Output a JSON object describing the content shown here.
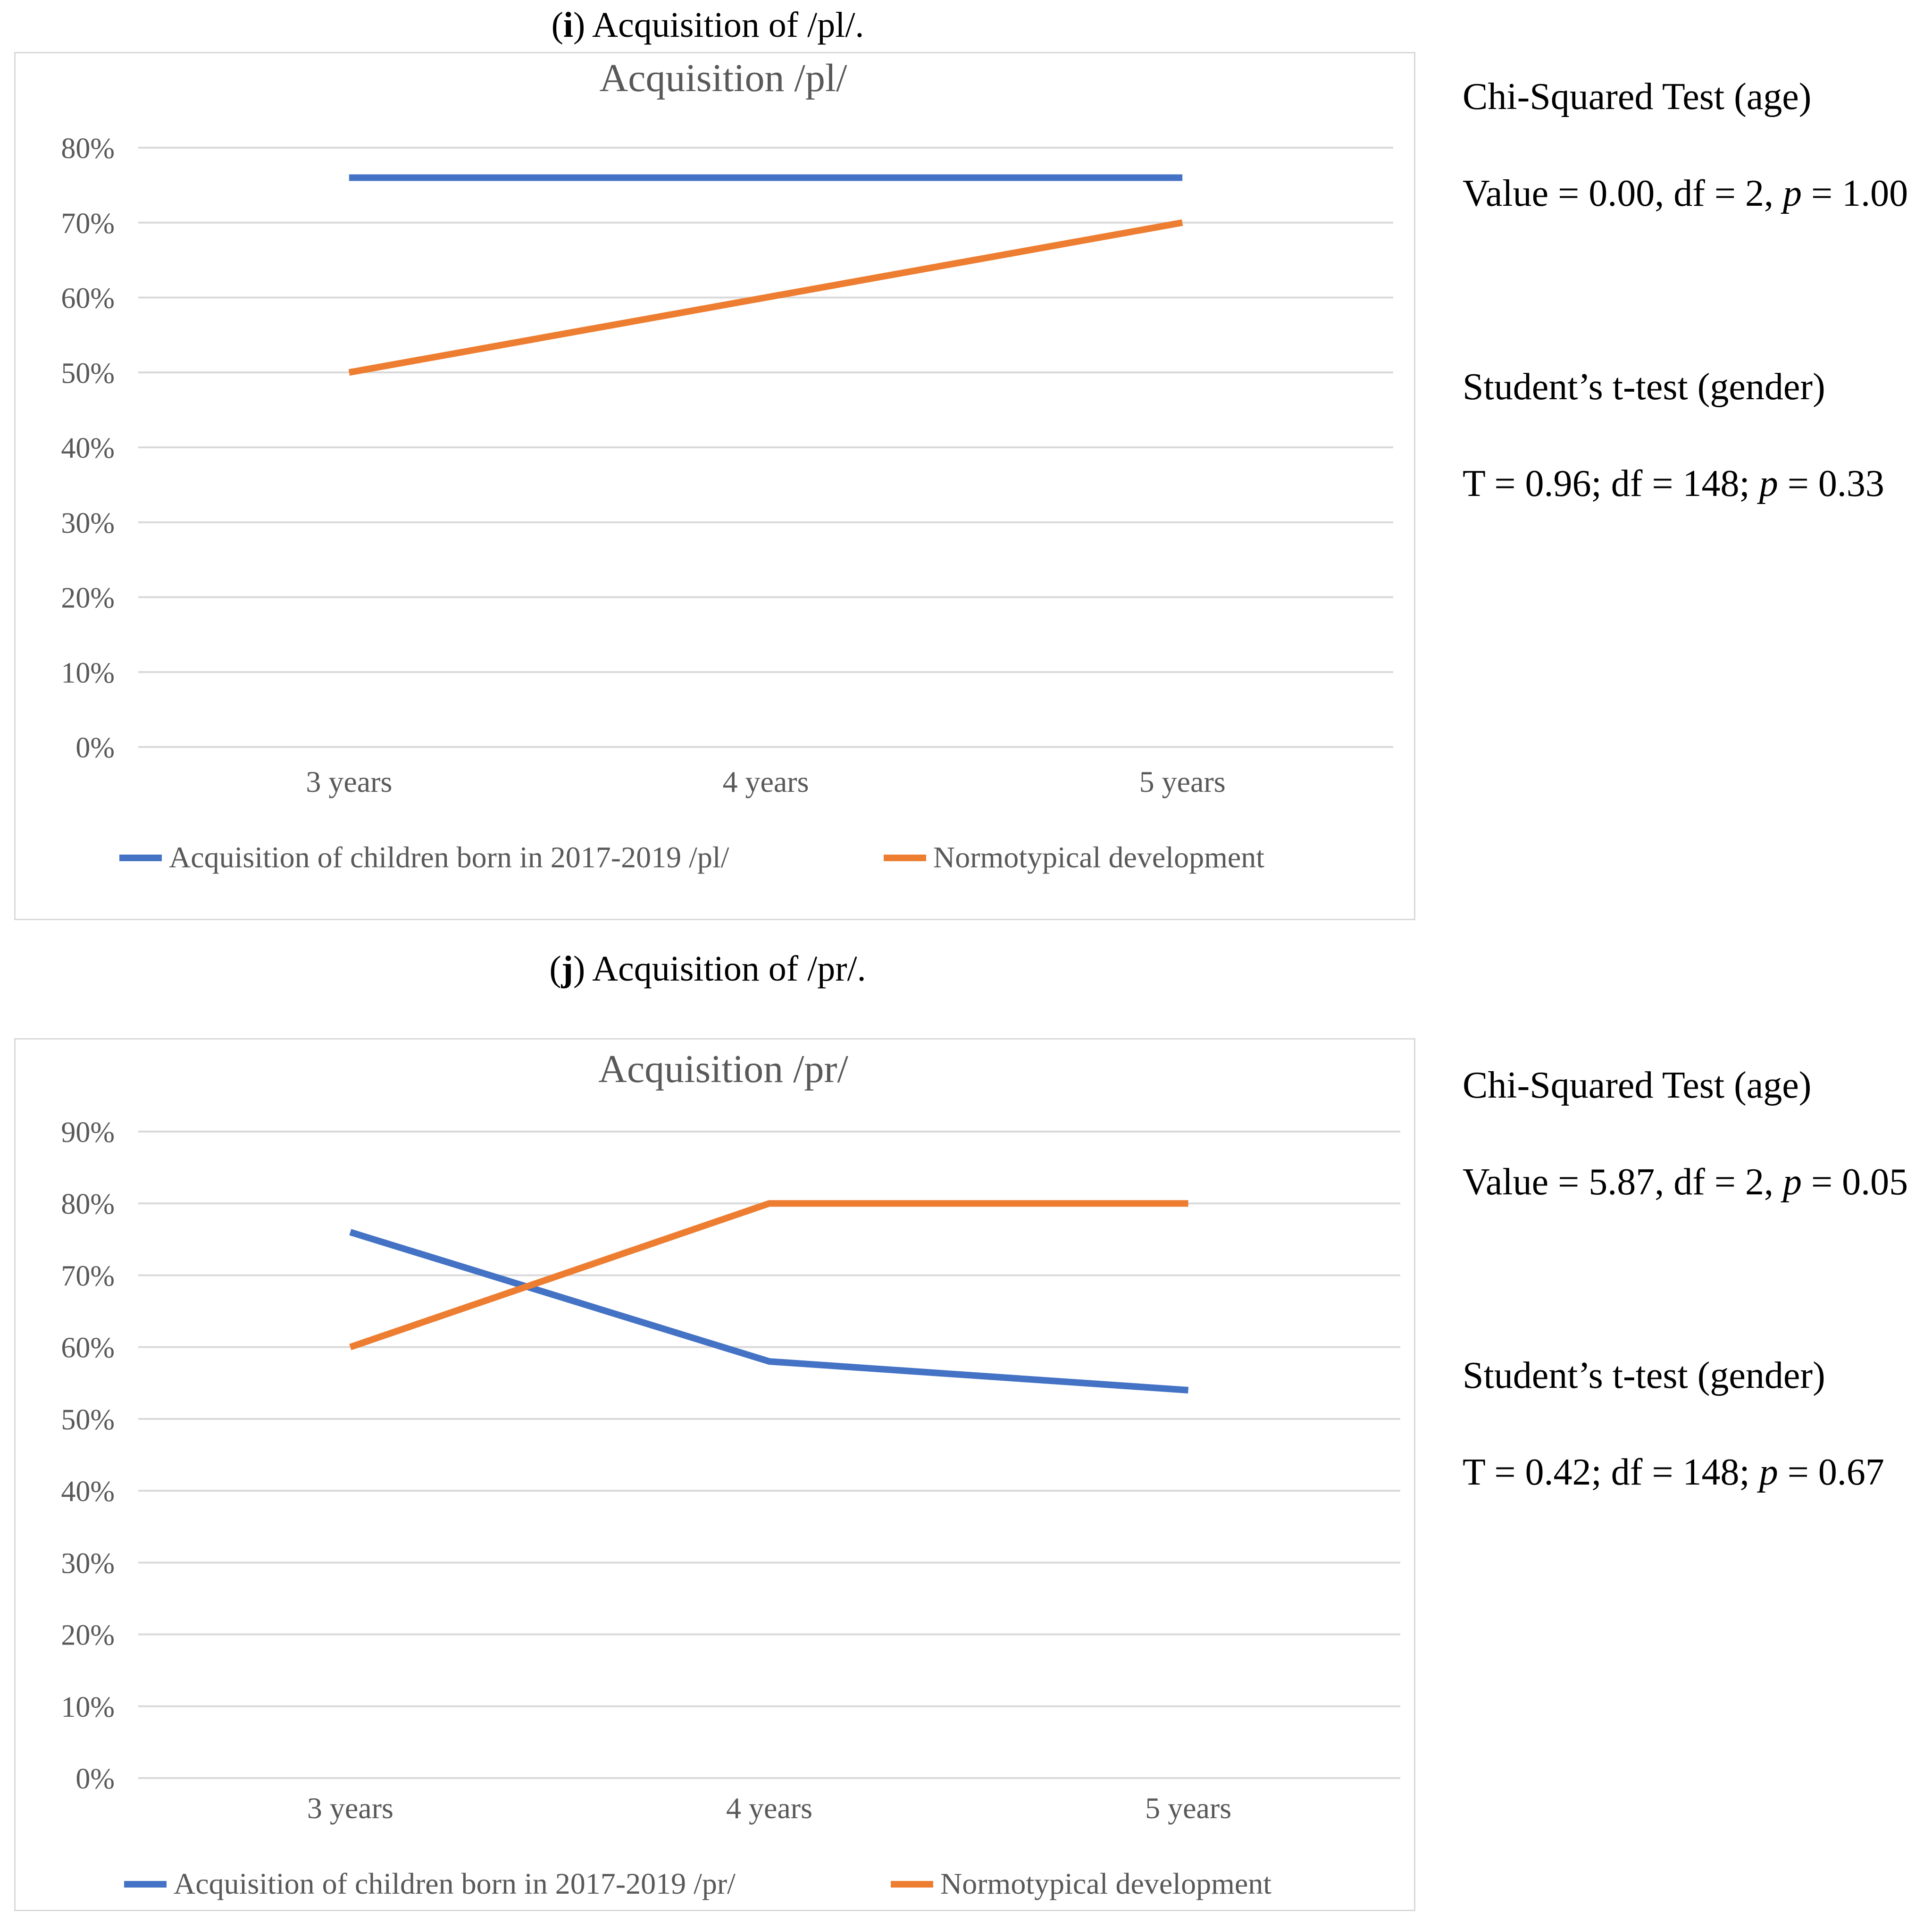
{
  "panels": [
    {
      "caption_letter": "i",
      "caption_text": "Acquisition of /pl/.",
      "stats": {
        "chi_title": "Chi-Squared Test (age)",
        "chi_prefix": "Value = 0.00, df = 2, ",
        "chi_p_label": "p",
        "chi_p_value": " = 1.00",
        "t_title": "Student’s t-test (gender)",
        "t_prefix": "T = 0.96; df = 148; ",
        "t_p_label": "p",
        "t_p_value": " = 0.33"
      }
    },
    {
      "caption_letter": "j",
      "caption_text": "Acquisition of /pr/.",
      "stats": {
        "chi_title": "Chi-Squared Test (age)",
        "chi_prefix": "Value = 5.87, df = 2, ",
        "chi_p_label": "p",
        "chi_p_value": " = 0.05",
        "t_title": "Student’s t-test (gender)",
        "t_prefix": "T = 0.42; df = 148; ",
        "t_p_label": "p",
        "t_p_value": " = 0.67"
      }
    }
  ],
  "chart_data": [
    {
      "type": "line",
      "title": "Acquisition /pl/",
      "categories": [
        "3 years",
        "4 years",
        "5 years"
      ],
      "ylim": [
        0,
        80
      ],
      "yticks": [
        "0%",
        "10%",
        "20%",
        "30%",
        "40%",
        "50%",
        "60%",
        "70%",
        "80%"
      ],
      "grid": true,
      "legend": "bottom",
      "series": [
        {
          "name": "Acquisition of children born in 2017-2019  /pl/",
          "color": "#4472c4",
          "values": [
            76,
            76,
            76
          ]
        },
        {
          "name": "Normotypical development",
          "color": "#ed7d31",
          "values": [
            50,
            60,
            70
          ]
        }
      ]
    },
    {
      "type": "line",
      "title": "Acquisition /pr/",
      "categories": [
        "3 years",
        "4 years",
        "5 years"
      ],
      "ylim": [
        0,
        90
      ],
      "yticks": [
        "0%",
        "10%",
        "20%",
        "30%",
        "40%",
        "50%",
        "60%",
        "70%",
        "80%",
        "90%"
      ],
      "grid": true,
      "legend": "bottom",
      "series": [
        {
          "name": "Acquisition of children born in 2017-2019  /pr/",
          "color": "#4472c4",
          "values": [
            76,
            58,
            54
          ]
        },
        {
          "name": "Normotypical development",
          "color": "#ed7d31",
          "values": [
            60,
            80,
            80
          ]
        }
      ]
    }
  ]
}
